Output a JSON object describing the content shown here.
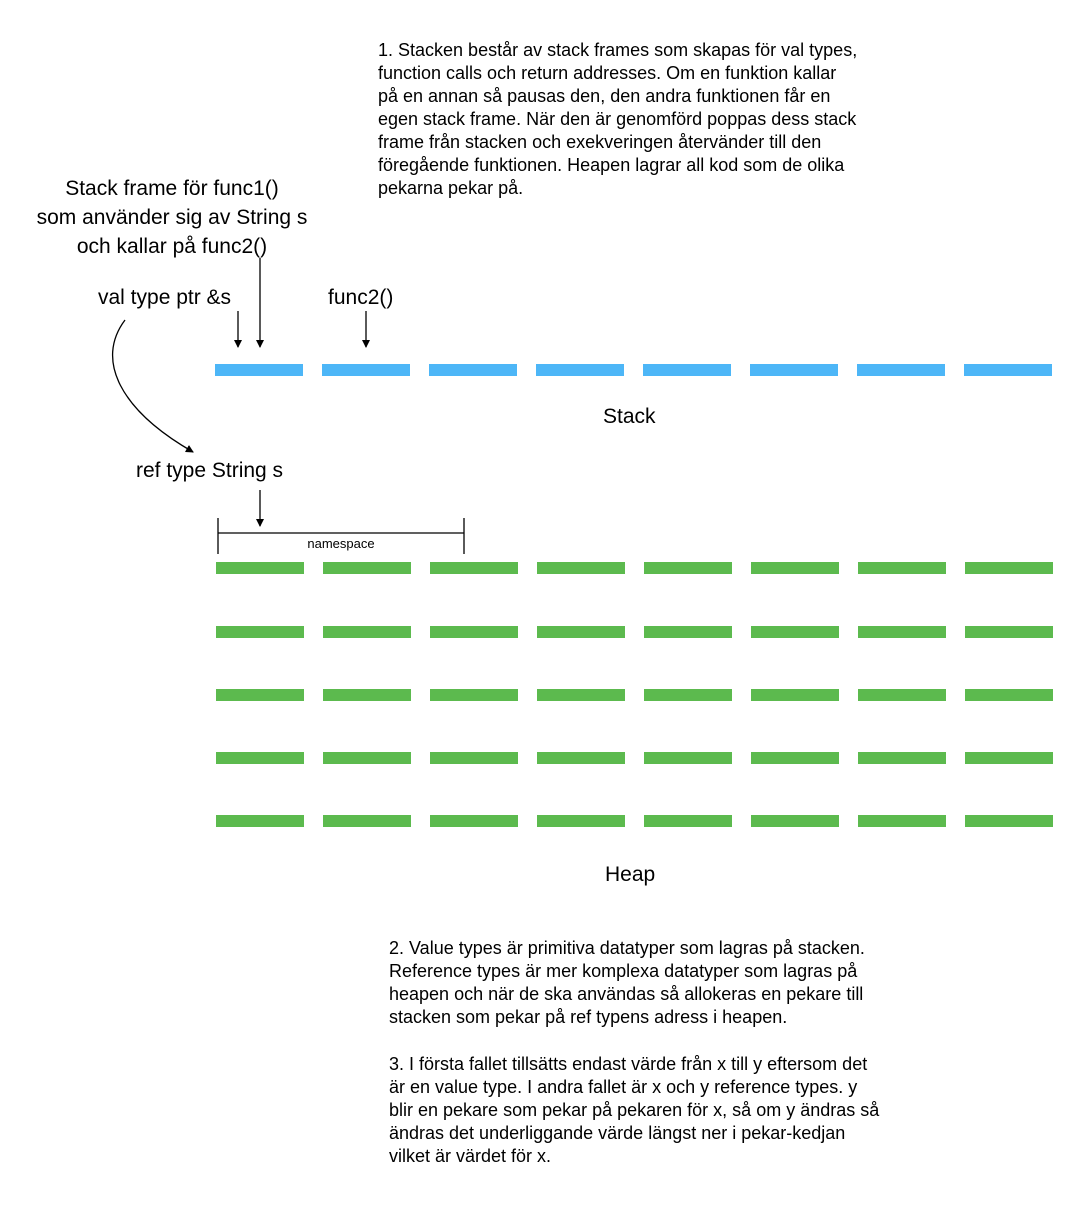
{
  "text": {
    "paragraph1": "1. Stacken består av stack frames som skapas för val types,\nfunction calls och return addresses. Om en funktion kallar\npå en annan så pausas den, den andra funktionen får en\negen stack frame. När den är genomförd poppas dess stack\nframe från stacken och exekveringen återvänder till den\nföregående funktionen. Heapen lagrar all kod som de olika\npekarna pekar på.",
    "paragraph2": "2. Value types är primitiva datatyper som lagras på stacken.\nReference types är mer komplexa datatyper som lagras på\nheapen och när de ska användas så allokeras en pekare till\nstacken som pekar på ref typens adress i heapen.",
    "paragraph3": "3. I första fallet tillsätts endast värde från x till y eftersom det\när en value type. I andra fallet är x och y reference types. y\nblir en pekare som pekar på pekaren för x, så om y ändras så\nändras det underliggande värde längst ner i pekar-kedjan\nvilket är värdet för x."
  },
  "labels": {
    "stack_frame": "Stack frame för func1()\nsom använder sig av String s\noch kallar på func2()",
    "val_type_ptr": "val type ptr &s",
    "func2": "func2()",
    "ref_type": "ref type String s",
    "namespace": "namespace",
    "stack": "Stack",
    "heap": "Heap"
  },
  "colors": {
    "stack_segment": "#4DB6F7",
    "heap_segment": "#5CBA4E",
    "line": "#000000"
  },
  "stack": {
    "segment_count": 8
  },
  "heap": {
    "rows": 5,
    "segments_per_row": 8
  }
}
